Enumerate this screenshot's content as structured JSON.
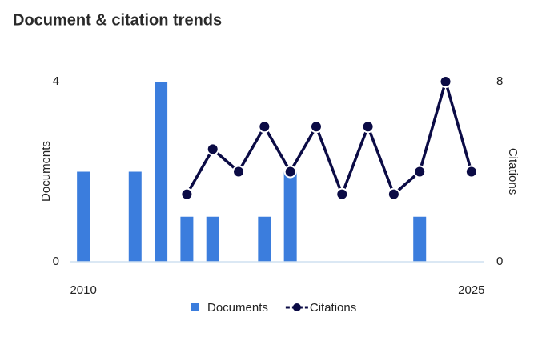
{
  "chart_data": {
    "type": "bar-line",
    "title": "Document & citation trends",
    "categories": [
      "2010",
      null,
      null,
      null,
      null,
      null,
      null,
      null,
      null,
      null,
      null,
      null,
      null,
      null,
      null,
      "2025"
    ],
    "ylabel": "Documents",
    "y2label": "Citations",
    "ylim": [
      0,
      4
    ],
    "yticks": [
      0,
      4
    ],
    "y2lim": [
      0,
      8
    ],
    "y2ticks": [
      0,
      8
    ],
    "series": [
      {
        "name": "Documents",
        "type": "bar",
        "color": "#3b7ddd",
        "values": [
          2,
          0,
          2,
          4,
          1,
          1,
          0,
          1,
          2,
          0,
          0,
          0,
          0,
          1,
          0,
          0
        ]
      },
      {
        "name": "Citations",
        "type": "line",
        "axis": "y2",
        "color": "#0b0b45",
        "values": [
          null,
          null,
          null,
          null,
          3,
          5,
          4,
          6,
          4,
          6,
          3,
          6,
          3,
          4,
          8,
          4
        ]
      }
    ],
    "legend": "bottom"
  }
}
